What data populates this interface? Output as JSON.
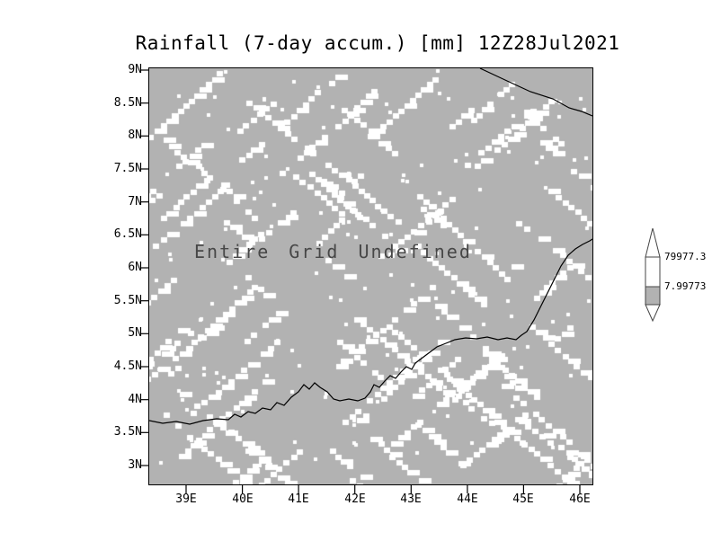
{
  "title": "Rainfall (7-day accum.) [mm] 12Z28Jul2021",
  "plot": {
    "undefined_label": "Entire Grid Undefined",
    "background_color": "#b2b2b2",
    "speckle_color": "#ffffff",
    "coastline_color": "#000000",
    "y_ticks": [
      "9N",
      "8.5N",
      "8N",
      "7.5N",
      "7N",
      "6.5N",
      "6N",
      "5.5N",
      "5N",
      "4.5N",
      "4N",
      "3.5N",
      "3N"
    ],
    "x_ticks": [
      "39E",
      "40E",
      "41E",
      "42E",
      "43E",
      "44E",
      "45E",
      "46E"
    ]
  },
  "colorbar": {
    "labels": [
      "79977.3",
      "7.99773"
    ],
    "segment_colors": [
      "#ffffff",
      "#ffffff",
      "#b2b2b2"
    ]
  },
  "chart_data": {
    "type": "heatmap",
    "title": "Rainfall (7-day accum.) [mm] 12Z28Jul2021",
    "x_tick_labels": [
      "39E",
      "40E",
      "41E",
      "42E",
      "43E",
      "44E",
      "45E",
      "46E"
    ],
    "y_tick_labels": [
      "9N",
      "8.5N",
      "8N",
      "7.5N",
      "7N",
      "6.5N",
      "6N",
      "5.5N",
      "5N",
      "4.5N",
      "4N",
      "3.5N",
      "3N"
    ],
    "x_range_deg_east": [
      39,
      46
    ],
    "y_range_deg_north": [
      3,
      9
    ],
    "values": "undefined (entire grid)",
    "annotation": "Entire Grid Undefined",
    "colorbar_levels": [
      79977.3,
      7.99773
    ],
    "legend_position": "right",
    "grid": false
  }
}
